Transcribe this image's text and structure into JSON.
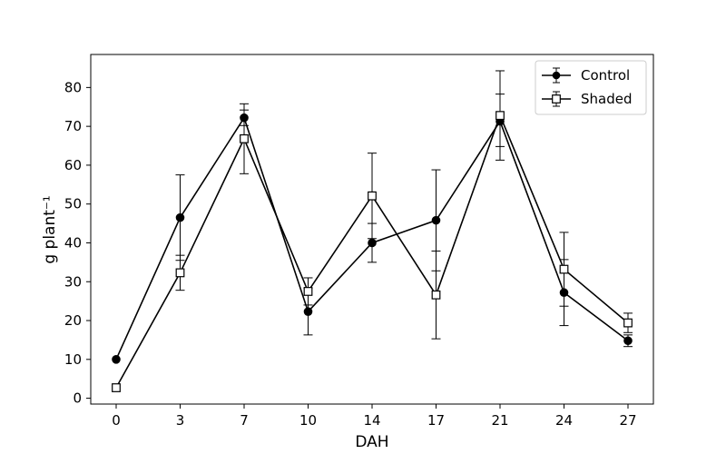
{
  "chart_data": {
    "type": "line",
    "xlabel": "DAH",
    "ylabel": "g plant⁻¹",
    "categories": [
      "0",
      "3",
      "7",
      "10",
      "14",
      "17",
      "21",
      "24",
      "27"
    ],
    "y_ticks": [
      0,
      10,
      20,
      30,
      40,
      50,
      60,
      70,
      80
    ],
    "ylim": [
      -1.5,
      88.5
    ],
    "grid": false,
    "legend_position": "top-right",
    "series": [
      {
        "name": "Control",
        "marker": "filled-circle",
        "color": "#000000",
        "values": [
          10.0,
          46.5,
          72.2,
          22.3,
          40.0,
          45.8,
          71.3,
          27.2,
          14.8
        ],
        "err_low": [
          0.0,
          11.0,
          2.0,
          6.0,
          5.0,
          13.0,
          10.0,
          8.5,
          1.5
        ],
        "err_high": [
          0.0,
          11.0,
          2.0,
          6.0,
          5.0,
          13.0,
          13.0,
          8.5,
          1.5
        ]
      },
      {
        "name": "Shaded",
        "marker": "open-square",
        "color": "#000000",
        "values": [
          2.7,
          32.3,
          66.8,
          27.5,
          52.1,
          26.6,
          72.8,
          33.2,
          19.4
        ],
        "err_low": [
          0.0,
          4.5,
          9.0,
          3.5,
          11.0,
          11.3,
          8.0,
          9.5,
          2.5
        ],
        "err_high": [
          0.0,
          4.5,
          9.0,
          3.5,
          11.0,
          11.3,
          5.5,
          9.5,
          2.5
        ]
      }
    ]
  }
}
